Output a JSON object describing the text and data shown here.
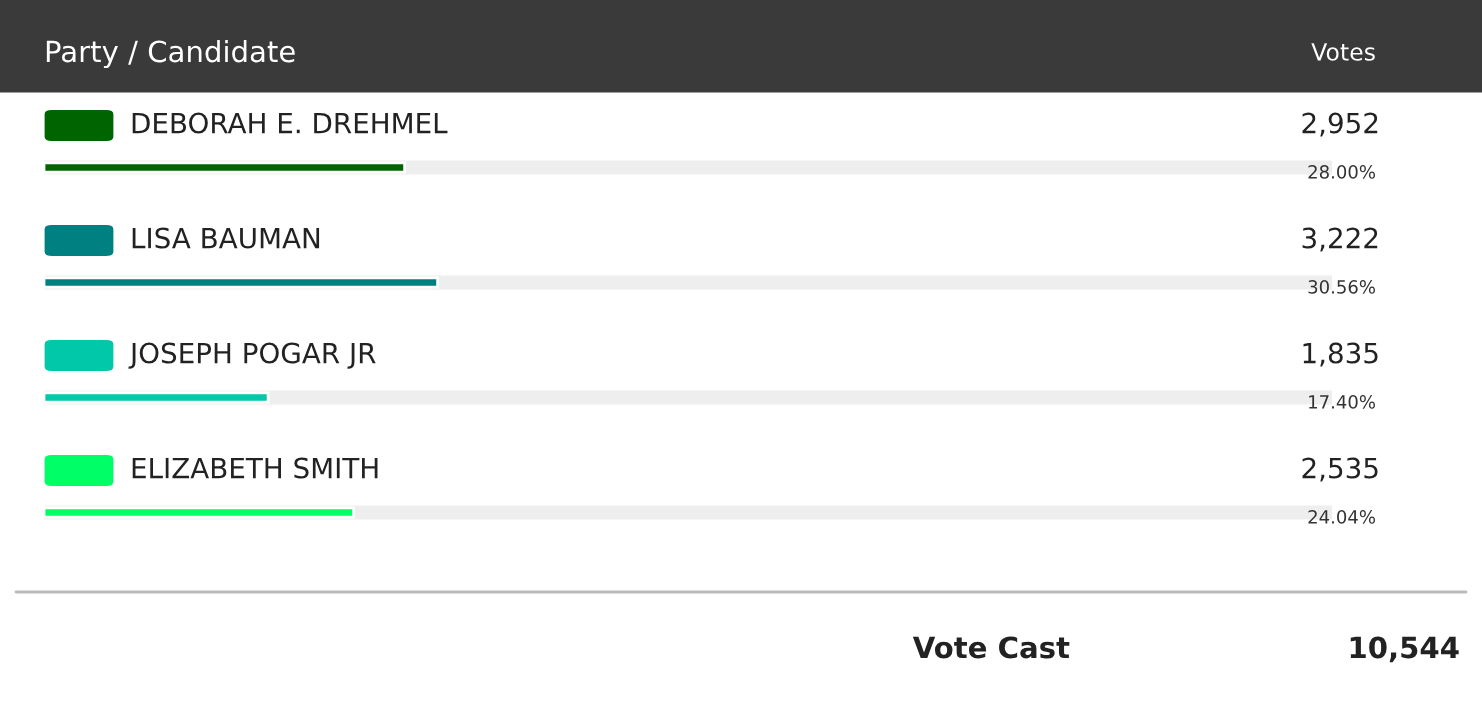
{
  "chart_data": {
    "type": "bar",
    "orientation": "horizontal",
    "title": "Party / Candidate",
    "categories": [
      "DEBORAH E. DREHMEL",
      "LISA BAUMAN",
      "JOSEPH POGAR JR",
      "ELIZABETH SMITH"
    ],
    "values": [
      28.0,
      30.56,
      17.4,
      24.04
    ],
    "colors": [
      "#006400",
      "#008080",
      "#00c8a8",
      "#00ff66"
    ],
    "value_labels": [
      "28.00%",
      "30.56%",
      "17.40%",
      "24.04%"
    ],
    "xlim": [
      0,
      100
    ],
    "annotations": [
      "Votes",
      "2,952",
      "3,222",
      "1,835",
      "2,535",
      "Vote Cast",
      "10,544"
    ],
    "legend": false
  }
}
